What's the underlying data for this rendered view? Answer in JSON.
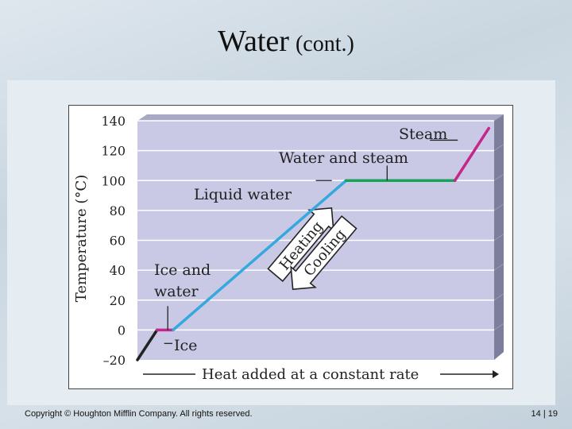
{
  "slide": {
    "title_main": "Water",
    "title_sub": "(cont.)",
    "copyright": "Copyright © Houghton Mifflin Company.  All rights reserved.",
    "page_number": "14 | 19"
  },
  "chart_data": {
    "type": "line",
    "title": "",
    "ylabel": "Temperature (°C)",
    "xlabel": "Heat added at a constant rate",
    "ylim": [
      -20,
      140
    ],
    "xlim": [
      0,
      10
    ],
    "yticks": [
      140,
      120,
      100,
      80,
      60,
      40,
      20,
      0,
      -20
    ],
    "ytick_labels": [
      "140",
      "120",
      "100",
      "80",
      "60",
      "40",
      "20",
      "0",
      "–20"
    ],
    "grid": true,
    "segments": [
      {
        "name": "Ice",
        "color": "#222222",
        "x": [
          0.0,
          0.55
        ],
        "y": [
          -20,
          0
        ]
      },
      {
        "name": "Ice and water",
        "color": "#c4268a",
        "x": [
          0.55,
          1.0
        ],
        "y": [
          0,
          0
        ]
      },
      {
        "name": "Liquid water",
        "color": "#35a8de",
        "x": [
          1.0,
          5.85
        ],
        "y": [
          0,
          100
        ]
      },
      {
        "name": "Water and steam",
        "color": "#17a35a",
        "x": [
          5.85,
          8.9
        ],
        "y": [
          100,
          100
        ]
      },
      {
        "name": "Steam",
        "color": "#c4268a",
        "x": [
          8.9,
          9.85
        ],
        "y": [
          100,
          135
        ]
      }
    ],
    "annotations": [
      {
        "text": "Steam",
        "x": 8.1,
        "y": 127
      },
      {
        "text": "Water and steam",
        "x": 6.25,
        "y": 115
      },
      {
        "text": "Liquid water",
        "x": 3.25,
        "y": 95
      },
      {
        "text": "Ice and",
        "x": 1.25,
        "y": 38
      },
      {
        "text": "water",
        "x": 1.25,
        "y": 25
      },
      {
        "text": "Ice",
        "x": 1.05,
        "y": -9
      }
    ],
    "arrows": [
      {
        "text": "Heating",
        "direction": "up"
      },
      {
        "text": "Cooling",
        "direction": "down"
      }
    ],
    "colors": {
      "plot_bg": "#c9c9e6",
      "plot_side": "#7d7d9c",
      "grid": "#ffffff",
      "arrow_fill": "#ffffff",
      "arrow_stroke": "#222222"
    }
  }
}
